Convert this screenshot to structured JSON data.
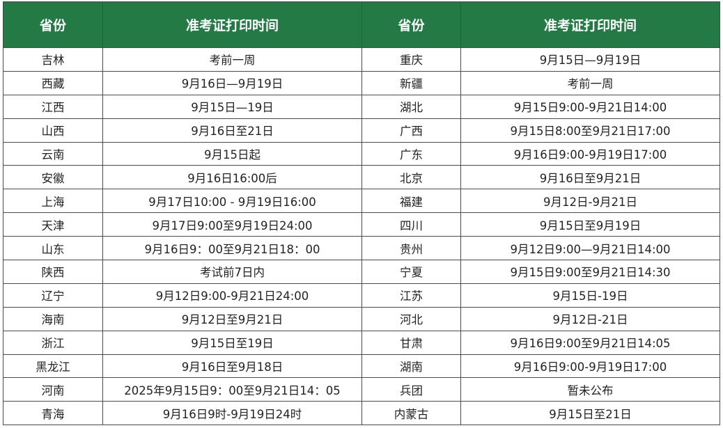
{
  "table": {
    "header": [
      "省份",
      "准考证打印时间",
      "省份",
      "准考证打印时间"
    ],
    "rows": [
      [
        "吉林",
        "考前一周",
        "重庆",
        "9月15日—9月19日"
      ],
      [
        "西藏",
        "9月16日—9月19日",
        "新疆",
        "考前一周"
      ],
      [
        "江西",
        "9月15日—19日",
        "湖北",
        "9月15日9:00-9月21日14:00"
      ],
      [
        "山西",
        "9月16日至21日",
        "广西",
        "9月15日8:00至9月21日17:00"
      ],
      [
        "云南",
        "9月15日起",
        "广东",
        "9月16日9:00-9月19日17:00"
      ],
      [
        "安徽",
        "9月16日16:00后",
        "北京",
        "9月16日至9月21日"
      ],
      [
        "上海",
        "9月17日10:00 - 9月19日16:00",
        "福建",
        "9月12日-9月21日"
      ],
      [
        "天津",
        "9月17日9:00至9月19日24:00",
        "四川",
        "9月15日至9月19日"
      ],
      [
        "山东",
        "9月16日9：00至9月21日18：00",
        "贵州",
        "9月12日9:00—9月21日14:00"
      ],
      [
        "陕西",
        "考试前7日内",
        "宁夏",
        "9月15日9:00至9月21日14:30"
      ],
      [
        "辽宁",
        "9月12日9:00-9月21日24:00",
        "江苏",
        "9月15日-19日"
      ],
      [
        "海南",
        "9月12日至9月21日",
        "河北",
        "9月12日-21日"
      ],
      [
        "浙江",
        "9月15日至19日",
        "甘肃",
        "9月16日9:00至9月21日14:05"
      ],
      [
        "黑龙江",
        "9月16日至9月18日",
        "湖南",
        "9月16日9:00-9月19日17:00"
      ],
      [
        "河南",
        "2025年9月15日9：00至9月21日14：05",
        "兵团",
        "暂未公布"
      ],
      [
        "青海",
        "9月16日9时-9月19日24时",
        "内蒙古",
        "9月15日至21日"
      ]
    ]
  }
}
